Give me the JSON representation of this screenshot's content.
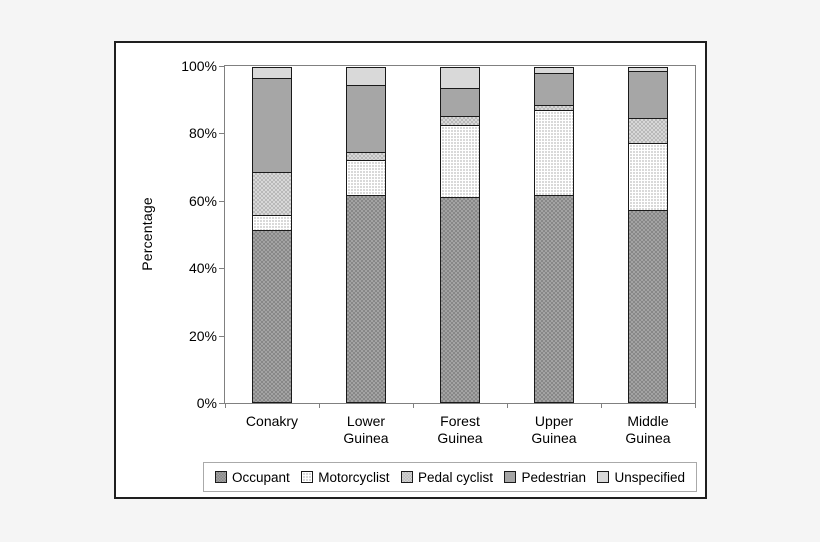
{
  "page": {
    "background_color": "#f5f5f5",
    "chart_background_color": "#ffffff",
    "frame_border_color": "#1f1f1f",
    "axis_color": "#808080",
    "segment_border_color": "#1a1a1a",
    "legend_border_color": "#aaaaaa",
    "text_color": "#000000"
  },
  "chart_data": {
    "type": "bar",
    "stacked": true,
    "title": "",
    "xlabel": "",
    "ylabel": "Percentage",
    "ylim": [
      0,
      100
    ],
    "ytick_labels": [
      "0%",
      "20%",
      "40%",
      "60%",
      "80%",
      "100%"
    ],
    "grid": false,
    "legend_position": "bottom",
    "categories": [
      "Conakry",
      "Lower\nGuinea",
      "Forest\nGuinea",
      "Upper\nGuinea",
      "Middle\nGuinea"
    ],
    "series": [
      {
        "name": "Occupant",
        "values": [
          51.5,
          62.0,
          61.5,
          62.0,
          57.5
        ],
        "pattern": "checker",
        "color": "#878787",
        "color2": "#a3a3a3"
      },
      {
        "name": "Motorcyclist",
        "values": [
          4.5,
          10.5,
          21.5,
          25.5,
          20.0
        ],
        "pattern": "dotgrid",
        "color": "#d9d9d9",
        "color2": "#ffffff"
      },
      {
        "name": "Pedal cyclist",
        "values": [
          13.0,
          2.5,
          2.5,
          1.5,
          7.5
        ],
        "pattern": "checker",
        "color": "#b9b9b9",
        "color2": "#d8d8d8"
      },
      {
        "name": "Pedestrian",
        "values": [
          28.0,
          20.0,
          8.5,
          9.5,
          14.0
        ],
        "pattern": "solid",
        "color": "#a6a6a6",
        "color2": "#a6a6a6"
      },
      {
        "name": "Unspecified",
        "values": [
          3.0,
          5.0,
          6.0,
          1.5,
          1.0
        ],
        "pattern": "solid",
        "color": "#d9d9d9",
        "color2": "#d9d9d9"
      }
    ]
  }
}
